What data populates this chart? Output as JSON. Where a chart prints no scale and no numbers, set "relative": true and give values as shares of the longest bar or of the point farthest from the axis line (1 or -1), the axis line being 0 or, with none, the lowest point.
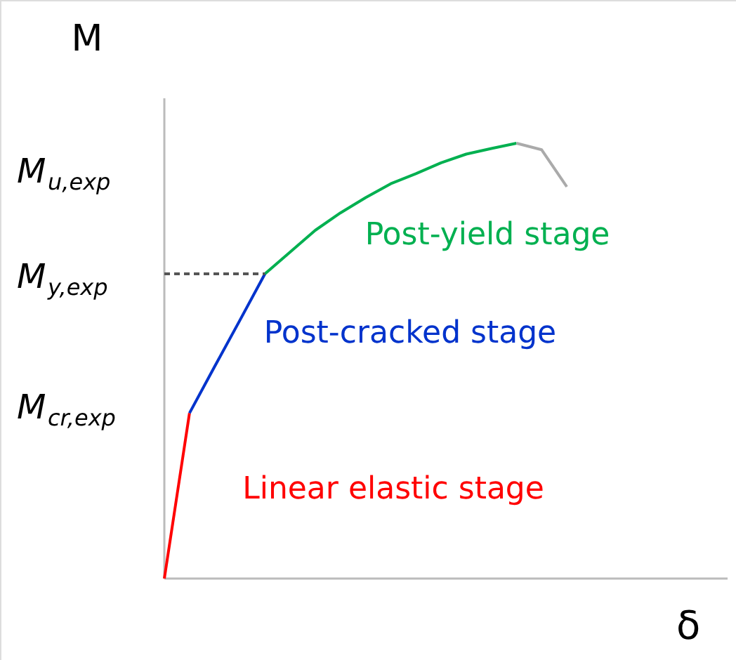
{
  "chart_data": {
    "type": "line",
    "relative": true,
    "xlabel": "δ",
    "ylabel": "M",
    "line_style": "solid",
    "marker": "none",
    "categories": [
      null,
      null,
      null,
      null,
      null,
      null,
      null,
      null,
      null,
      null,
      null,
      null,
      null,
      null,
      null,
      null,
      null,
      null,
      null,
      null,
      null,
      null,
      null
    ],
    "series": [
      {
        "name": "Linear elastic stage",
        "color": "#ff0000",
        "values": [
          0,
          0.38,
          null,
          null,
          null,
          null,
          null,
          null,
          null,
          null,
          null,
          null,
          null,
          null,
          null,
          null,
          null,
          null,
          null,
          null,
          null,
          null,
          null
        ]
      },
      {
        "name": "Post-cracked stage",
        "color": "#0033cc",
        "values": [
          null,
          0.38,
          0.487,
          0.593,
          0.7,
          null,
          null,
          null,
          null,
          null,
          null,
          null,
          null,
          null,
          null,
          null,
          null,
          null,
          null,
          null,
          null,
          null,
          null
        ]
      },
      {
        "name": "Post-yield stage",
        "color": "#00b050",
        "values": [
          null,
          null,
          null,
          null,
          0.7,
          0.75,
          0.8,
          0.84,
          0.875,
          0.907,
          0.93,
          0.955,
          0.975,
          0.988,
          1,
          null,
          null,
          null,
          null,
          null,
          null,
          null,
          null
        ]
      },
      {
        "color": "#aaaaaa",
        "values": [
          null,
          null,
          null,
          null,
          null,
          null,
          null,
          null,
          null,
          null,
          null,
          null,
          null,
          null,
          1,
          0.985,
          0.9,
          null,
          null,
          null,
          null,
          null,
          null
        ]
      },
      {
        "color": "#555555",
        "line_style": "dashed",
        "values": [
          0.7,
          0.7,
          0.7,
          0.7,
          0.7,
          null,
          null,
          null,
          null,
          null,
          null,
          null,
          null,
          null,
          null,
          null,
          null,
          null,
          null,
          null,
          null,
          null,
          null
        ]
      }
    ],
    "annotations": [
      "M$_{u,exp}$",
      "M$_{y,exp}$",
      "M$_{cr,exp}$"
    ]
  }
}
